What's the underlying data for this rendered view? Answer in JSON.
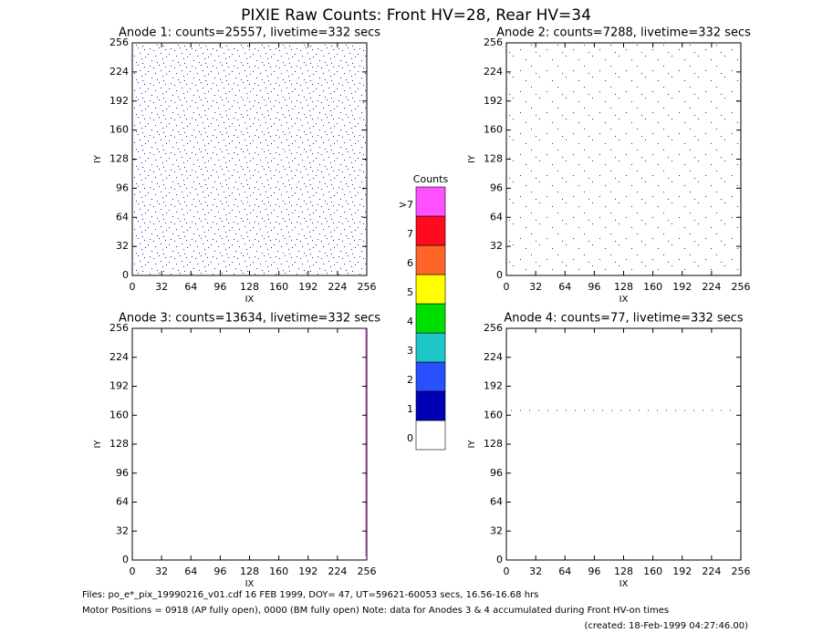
{
  "title": "PIXIE Raw Counts:  Front HV=28, Rear HV=34",
  "chart_data": [
    {
      "type": "heatmap",
      "title": "Anode 1: counts=25557, livetime=332 secs",
      "xlabel": "IX",
      "ylabel": "IY",
      "xlim": [
        0,
        256
      ],
      "ylim": [
        0,
        256
      ],
      "xticks": [
        0,
        32,
        64,
        96,
        128,
        160,
        192,
        224,
        256
      ],
      "yticks": [
        0,
        32,
        64,
        96,
        128,
        160,
        192,
        224,
        256
      ]
    },
    {
      "type": "heatmap",
      "title": "Anode 2: counts=7288, livetime=332 secs",
      "xlabel": "IX",
      "ylabel": "IY",
      "xlim": [
        0,
        256
      ],
      "ylim": [
        0,
        256
      ],
      "xticks": [
        0,
        32,
        64,
        96,
        128,
        160,
        192,
        224,
        256
      ],
      "yticks": [
        0,
        32,
        64,
        96,
        128,
        160,
        192,
        224,
        256
      ]
    },
    {
      "type": "heatmap",
      "title": "Anode 3: counts=13634, livetime=332 secs",
      "xlabel": "IX",
      "ylabel": "IY",
      "xlim": [
        0,
        256
      ],
      "ylim": [
        0,
        256
      ],
      "xticks": [
        0,
        32,
        64,
        96,
        128,
        160,
        192,
        224,
        256
      ],
      "yticks": [
        0,
        32,
        64,
        96,
        128,
        160,
        192,
        224,
        256
      ]
    },
    {
      "type": "heatmap",
      "title": "Anode 4: counts=77, livetime=332 secs",
      "xlabel": "IX",
      "ylabel": "IY",
      "xlim": [
        0,
        256
      ],
      "ylim": [
        0,
        256
      ],
      "xticks": [
        0,
        32,
        64,
        96,
        128,
        160,
        192,
        224,
        256
      ],
      "yticks": [
        0,
        32,
        64,
        96,
        128,
        160,
        192,
        224,
        256
      ]
    }
  ],
  "colorbar": {
    "title": "Counts",
    "labels": [
      "0",
      "1",
      "2",
      "3",
      "4",
      "5",
      "6",
      "7",
      ">7"
    ],
    "colors": [
      "#ffffff",
      "#0000b4",
      "#2850ff",
      "#1ec8c8",
      "#00e000",
      "#ffff00",
      "#ff6428",
      "#ff0a1e",
      "#ff50ff"
    ]
  },
  "footer": {
    "files": "Files: po_e*_pix_19990216_v01.cdf    16 FEB 1999, DOY= 47, UT=59621-60053 secs, 16.56-16.68 hrs",
    "motor": "Motor Positions = 0918 (AP fully open), 0000 (BM fully open)    Note: data for Anodes 3 & 4 accumulated during Front HV-on times",
    "created": "(created: 18-Feb-1999 04:27:46.00)"
  }
}
